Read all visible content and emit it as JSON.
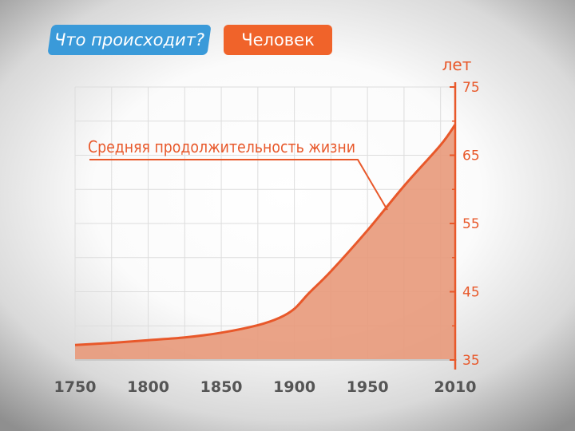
{
  "header": {
    "question_label": "Что происходит?",
    "subject_label": "Человек"
  },
  "colors": {
    "accent": "#e8582a",
    "area_fill": "#e8997a",
    "question_bg": "#3a9ad9",
    "subject_bg": "#f0632a",
    "grid": "#dddddd",
    "tick_x": "#555555"
  },
  "chart_data": {
    "type": "area",
    "title": "",
    "xlabel": "",
    "ylabel": "лет",
    "series": [
      {
        "name": "Средняя продолжительность жизни",
        "x": [
          1750,
          1775,
          1800,
          1825,
          1850,
          1875,
          1890,
          1900,
          1910,
          1925,
          1950,
          1975,
          2000,
          2010
        ],
        "y": [
          37.2,
          37.5,
          37.9,
          38.3,
          39.0,
          40.1,
          41.2,
          42.5,
          44.8,
          48.0,
          54.0,
          60.5,
          66.5,
          69.5
        ]
      }
    ],
    "xlim": [
      1750,
      2010
    ],
    "ylim": [
      35,
      75
    ],
    "xticks": [
      1750,
      1800,
      1850,
      1900,
      1950,
      2010
    ],
    "yticks": [
      35,
      45,
      55,
      65,
      75
    ],
    "grid": true,
    "annotation": "Средняя продолжительность жизни",
    "y_axis_side": "right"
  }
}
